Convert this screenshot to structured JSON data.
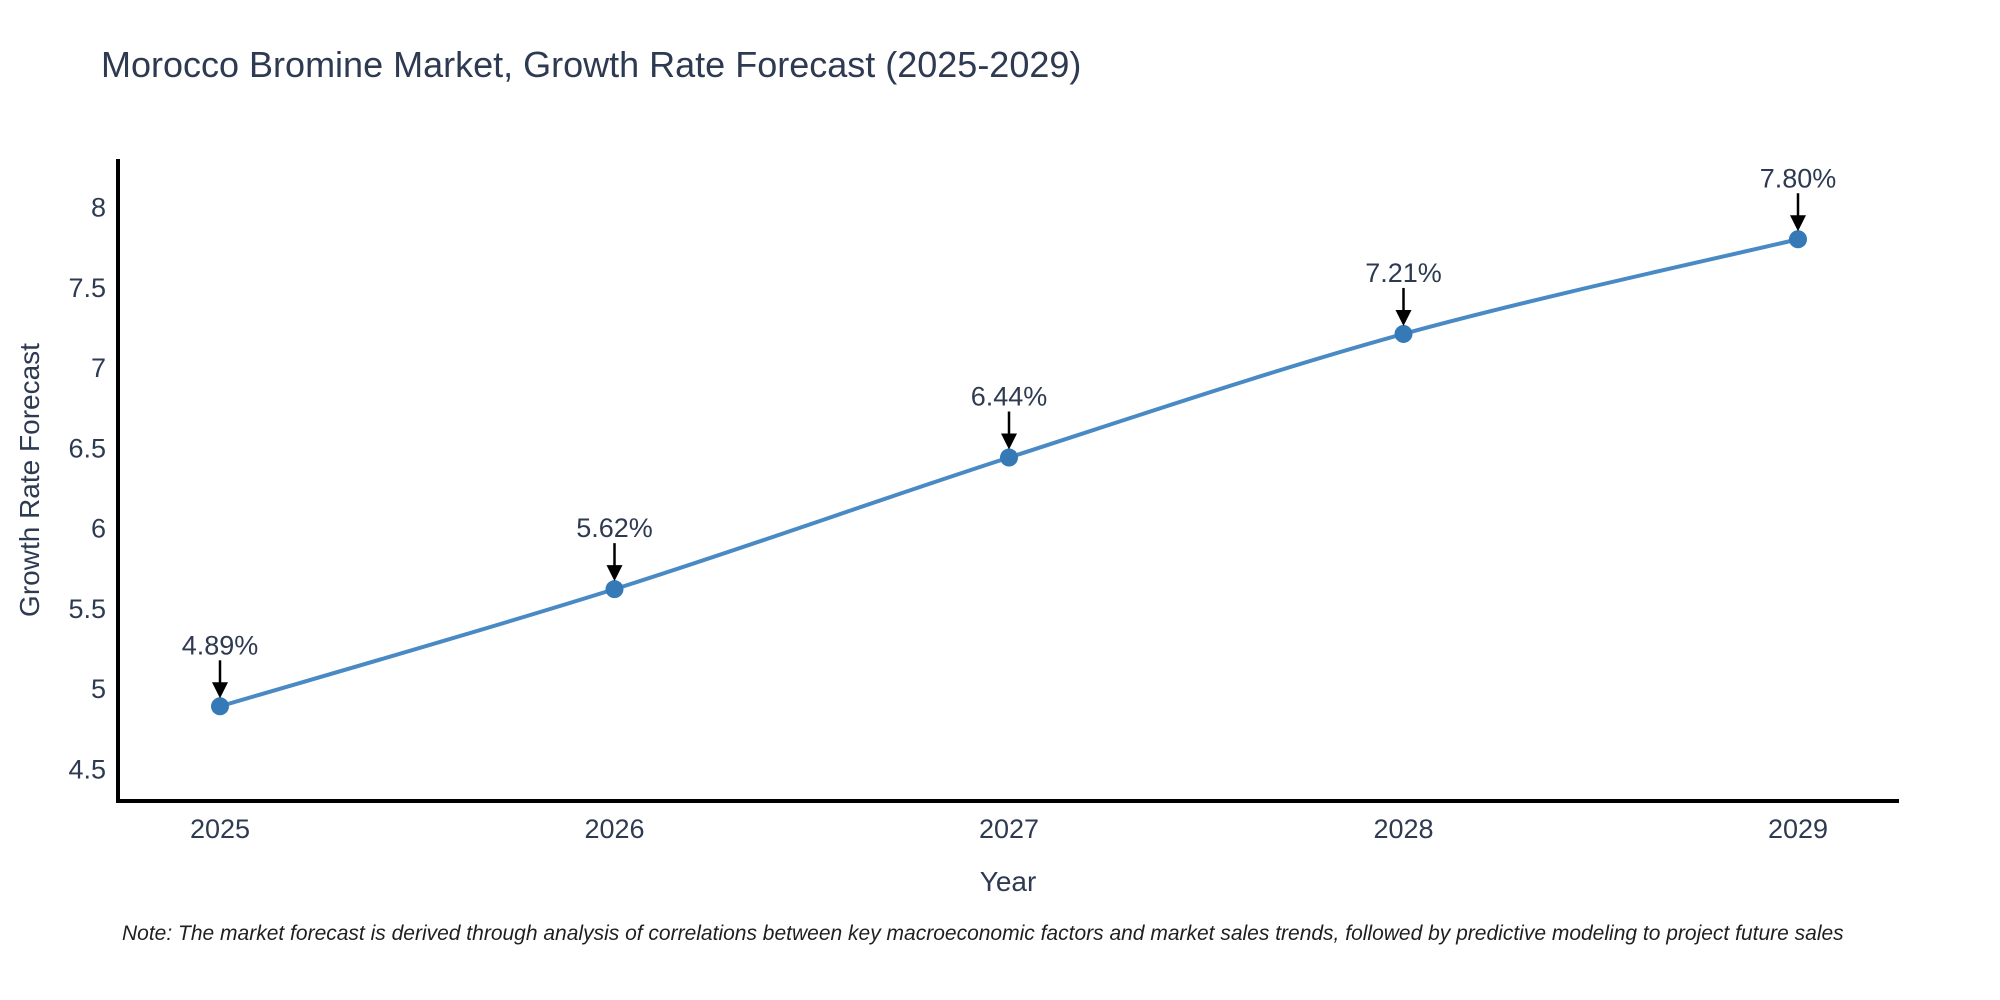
{
  "chart_data": {
    "type": "line",
    "title": "Morocco Bromine Market, Growth Rate Forecast (2025-2029)",
    "xlabel": "Year",
    "ylabel": "Growth Rate Forecast",
    "categories": [
      "2025",
      "2026",
      "2027",
      "2028",
      "2029"
    ],
    "values": [
      4.89,
      5.62,
      6.44,
      7.21,
      7.8
    ],
    "point_labels": [
      "4.89%",
      "5.62%",
      "6.44%",
      "7.21%",
      "7.80%"
    ],
    "y_ticks": [
      4.5,
      5,
      5.5,
      6,
      6.5,
      7,
      7.5,
      8
    ],
    "y_tick_labels": [
      "4.5",
      "5",
      "5.5",
      "6",
      "6.5",
      "7",
      "7.5",
      "8"
    ],
    "ylim": [
      4.3,
      8.3
    ],
    "grid": false,
    "legend": "none",
    "line_shape": "spline",
    "colors": {
      "line": "#4a8ac4",
      "marker": "#3579b7",
      "axis": "#000000",
      "arrow": "#000000",
      "text": "#2e3a52",
      "note": "#1f1f1f",
      "background": "#ffffff"
    },
    "note": "Note: The market forecast is derived through analysis of correlations between key macroeconomic factors and market sales trends, followed by predictive modeling to project future sales"
  }
}
